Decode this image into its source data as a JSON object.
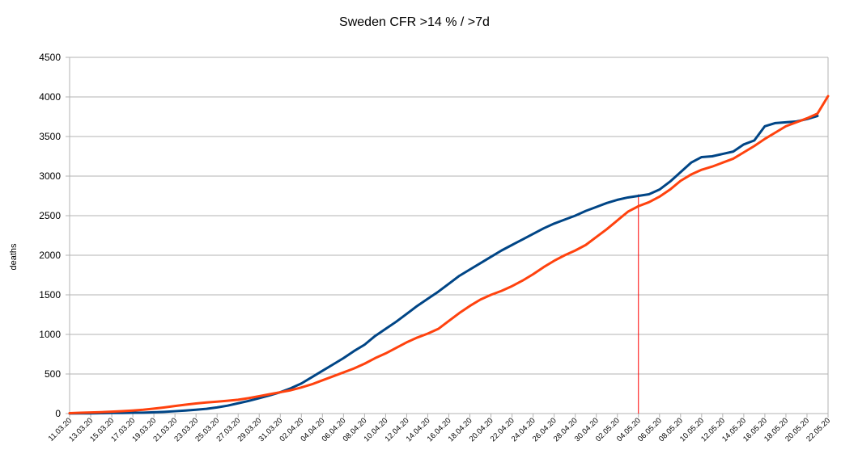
{
  "chart_data": {
    "type": "line",
    "title": "Sweden  CFR >14 % / >7d",
    "xlabel": "",
    "ylabel": "deaths",
    "ylim": [
      0,
      4500
    ],
    "yticks": [
      0,
      500,
      1000,
      1500,
      2000,
      2500,
      3000,
      3500,
      4000,
      4500
    ],
    "grid": true,
    "legend": "none",
    "x": [
      "11.03.20",
      "12.03.20",
      "13.03.20",
      "14.03.20",
      "15.03.20",
      "16.03.20",
      "17.03.20",
      "18.03.20",
      "19.03.20",
      "20.03.20",
      "21.03.20",
      "22.03.20",
      "23.03.20",
      "24.03.20",
      "25.03.20",
      "26.03.20",
      "27.03.20",
      "28.03.20",
      "29.03.20",
      "30.03.20",
      "31.03.20",
      "01.04.20",
      "02.04.20",
      "03.04.20",
      "04.04.20",
      "05.04.20",
      "06.04.20",
      "07.04.20",
      "08.04.20",
      "09.04.20",
      "10.04.20",
      "11.04.20",
      "12.04.20",
      "13.04.20",
      "14.04.20",
      "15.04.20",
      "16.04.20",
      "17.04.20",
      "18.04.20",
      "19.04.20",
      "20.04.20",
      "21.04.20",
      "22.04.20",
      "23.04.20",
      "24.04.20",
      "25.04.20",
      "26.04.20",
      "27.04.20",
      "28.04.20",
      "29.04.20",
      "30.04.20",
      "01.05.20",
      "02.05.20",
      "03.05.20",
      "04.05.20",
      "05.05.20",
      "06.05.20",
      "07.05.20",
      "08.05.20",
      "09.05.20",
      "10.05.20",
      "11.05.20",
      "12.05.20",
      "13.05.20",
      "14.05.20",
      "15.05.20",
      "16.05.20",
      "17.05.20",
      "18.05.20",
      "19.05.20",
      "20.05.20",
      "21.05.20",
      "22.05.20"
    ],
    "xtick_labels": [
      "11.03.20",
      "13.03.20",
      "15.03.20",
      "17.03.20",
      "19.03.20",
      "21.03.20",
      "23.03.20",
      "25.03.20",
      "27.03.20",
      "29.03.20",
      "31.03.20",
      "02.04.20",
      "04.04.20",
      "06.04.20",
      "08.04.20",
      "10.04.20",
      "12.04.20",
      "14.04.20",
      "16.04.20",
      "18.04.20",
      "20.04.20",
      "22.04.20",
      "24.04.20",
      "26.04.20",
      "28.04.20",
      "30.04.20",
      "02.05.20",
      "04.05.20",
      "06.05.20",
      "08.05.20",
      "10.05.20",
      "12.05.20",
      "14.05.20",
      "16.05.20",
      "18.05.20",
      "20.05.20",
      "22.05.20"
    ],
    "series": [
      {
        "color": "#004586",
        "values": [
          1,
          2,
          3,
          5,
          7,
          8,
          10,
          12,
          16,
          22,
          30,
          38,
          48,
          60,
          78,
          100,
          130,
          160,
          195,
          230,
          270,
          320,
          380,
          460,
          540,
          620,
          700,
          790,
          870,
          980,
          1070,
          1160,
          1260,
          1360,
          1450,
          1540,
          1640,
          1740,
          1820,
          1900,
          1980,
          2060,
          2130,
          2200,
          2270,
          2340,
          2400,
          2450,
          2500,
          2560,
          2610,
          2660,
          2700,
          2730,
          2750,
          2770,
          2830,
          2930,
          3050,
          3170,
          3240,
          3250,
          3280,
          3310,
          3400,
          3450,
          3630,
          3670,
          3680,
          3690,
          3720,
          3760,
          null
        ]
      },
      {
        "color": "#ff420e",
        "values": [
          5,
          10,
          14,
          18,
          24,
          30,
          38,
          48,
          62,
          78,
          96,
          112,
          128,
          140,
          150,
          162,
          175,
          195,
          220,
          245,
          270,
          295,
          330,
          370,
          420,
          470,
          520,
          570,
          630,
          700,
          760,
          830,
          900,
          960,
          1010,
          1070,
          1170,
          1270,
          1360,
          1440,
          1500,
          1550,
          1610,
          1680,
          1760,
          1850,
          1930,
          2000,
          2060,
          2130,
          2230,
          2330,
          2440,
          2550,
          2620,
          2670,
          2740,
          2830,
          2940,
          3020,
          3080,
          3120,
          3170,
          3220,
          3300,
          3380,
          3470,
          3550,
          3630,
          3680,
          3730,
          3790,
          4010
        ]
      }
    ],
    "annotations": [
      {
        "type": "vline",
        "x": "04.05.20",
        "from": 0,
        "to": 2770,
        "color": "#ff0000"
      }
    ]
  }
}
